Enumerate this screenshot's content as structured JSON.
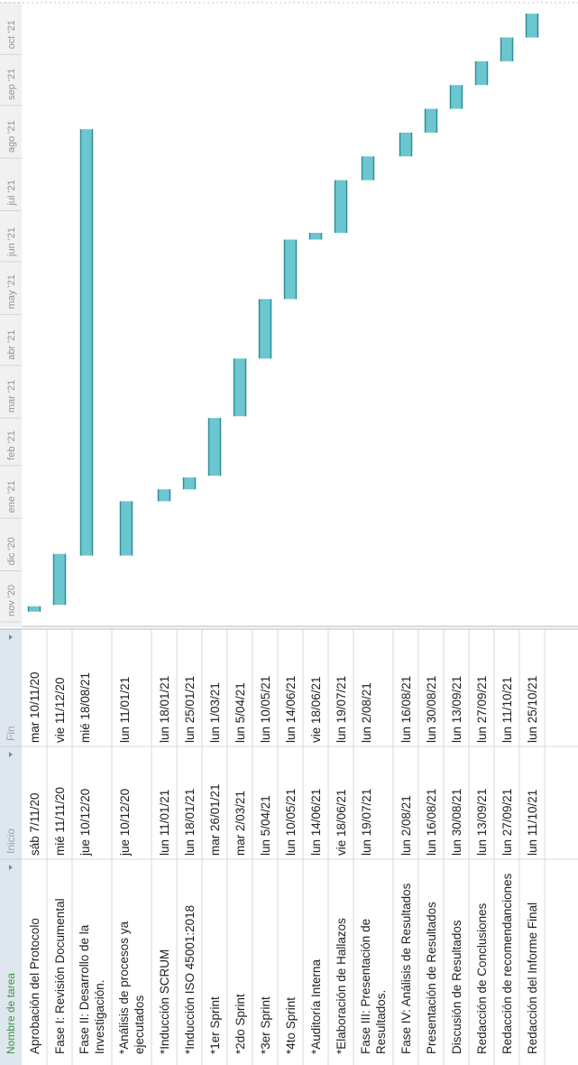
{
  "header_labels": {
    "name": "Nombre de tarea",
    "start": "Inicio",
    "end": "Fin"
  },
  "chart_data": {
    "type": "gantt",
    "x_axis_ticks": [
      "nov '20",
      "dic '20",
      "ene '21",
      "feb '21",
      "mar '21",
      "abr '21",
      "may '21",
      "jun '21",
      "jul '21",
      "ago '21",
      "sep '21",
      "oct '21"
    ],
    "bar_color": "#6cc6cf",
    "tasks": [
      {
        "name_lines": [
          "Aprobación del Protocolo"
        ],
        "start_label": "sáb 7/11/20",
        "end_label": "mar 10/11/20",
        "start": "2020-11-07",
        "end": "2020-11-10"
      },
      {
        "name_lines": [
          "Fase I: Revisión Documental"
        ],
        "start_label": "mié 11/11/20",
        "end_label": "vie 11/12/20",
        "start": "2020-11-11",
        "end": "2020-12-11"
      },
      {
        "name_lines": [
          "Fase II: Desarrollo de la",
          "Investigación."
        ],
        "start_label": "jue 10/12/20",
        "end_label": "mié 18/08/21",
        "start": "2020-12-10",
        "end": "2021-08-18"
      },
      {
        "name_lines": [
          "*Análisis de procesos ya",
          "ejecutados"
        ],
        "start_label": "jue 10/12/20",
        "end_label": "lun 11/01/21",
        "start": "2020-12-10",
        "end": "2021-01-11"
      },
      {
        "name_lines": [
          "*Inducción SCRUM"
        ],
        "start_label": "lun 11/01/21",
        "end_label": "lun 18/01/21",
        "start": "2021-01-11",
        "end": "2021-01-18"
      },
      {
        "name_lines": [
          "*Inducción ISO 45001:2018"
        ],
        "start_label": "lun 18/01/21",
        "end_label": "lun 25/01/21",
        "start": "2021-01-18",
        "end": "2021-01-25"
      },
      {
        "name_lines": [
          "*1er Sprint"
        ],
        "start_label": "mar 26/01/21",
        "end_label": "lun 1/03/21",
        "start": "2021-01-26",
        "end": "2021-03-01"
      },
      {
        "name_lines": [
          "*2do Sprint"
        ],
        "start_label": "mar 2/03/21",
        "end_label": "lun 5/04/21",
        "start": "2021-03-02",
        "end": "2021-04-05"
      },
      {
        "name_lines": [
          "*3er Sprint"
        ],
        "start_label": "lun 5/04/21",
        "end_label": "lun 10/05/21",
        "start": "2021-04-05",
        "end": "2021-05-10"
      },
      {
        "name_lines": [
          "*4to Sprint"
        ],
        "start_label": "lun 10/05/21",
        "end_label": "lun 14/06/21",
        "start": "2021-05-10",
        "end": "2021-06-14"
      },
      {
        "name_lines": [
          "*Auditoría Interna"
        ],
        "start_label": "lun 14/06/21",
        "end_label": "vie 18/06/21",
        "start": "2021-06-14",
        "end": "2021-06-18"
      },
      {
        "name_lines": [
          "*Elaboración de Hallazos"
        ],
        "start_label": "vie 18/06/21",
        "end_label": "lun 19/07/21",
        "start": "2021-06-18",
        "end": "2021-07-19"
      },
      {
        "name_lines": [
          "Fase III: Presentación de",
          "Resultados."
        ],
        "start_label": "lun 19/07/21",
        "end_label": "lun 2/08/21",
        "start": "2021-07-19",
        "end": "2021-08-02"
      },
      {
        "name_lines": [
          "Fase IV: Análisis de Resultados"
        ],
        "start_label": "lun 2/08/21",
        "end_label": "lun 16/08/21",
        "start": "2021-08-02",
        "end": "2021-08-16"
      },
      {
        "name_lines": [
          "Presentación de Resultados"
        ],
        "start_label": "lun 16/08/21",
        "end_label": "lun 30/08/21",
        "start": "2021-08-16",
        "end": "2021-08-30"
      },
      {
        "name_lines": [
          "Discusión de Resultados"
        ],
        "start_label": "lun 30/08/21",
        "end_label": "lun 13/09/21",
        "start": "2021-08-30",
        "end": "2021-09-13"
      },
      {
        "name_lines": [
          "Redacción de Conclusiones"
        ],
        "start_label": "lun 13/09/21",
        "end_label": "lun 27/09/21",
        "start": "2021-09-13",
        "end": "2021-09-27"
      },
      {
        "name_lines": [
          "Redacción de recomendanciones"
        ],
        "start_label": "lun 27/09/21",
        "end_label": "lun 11/10/21",
        "start": "2021-09-27",
        "end": "2021-10-11"
      },
      {
        "name_lines": [
          "Redacción del Informe Final"
        ],
        "start_label": "lun 11/10/21",
        "end_label": "lun 25/10/21",
        "start": "2021-10-11",
        "end": "2021-10-25"
      }
    ]
  }
}
